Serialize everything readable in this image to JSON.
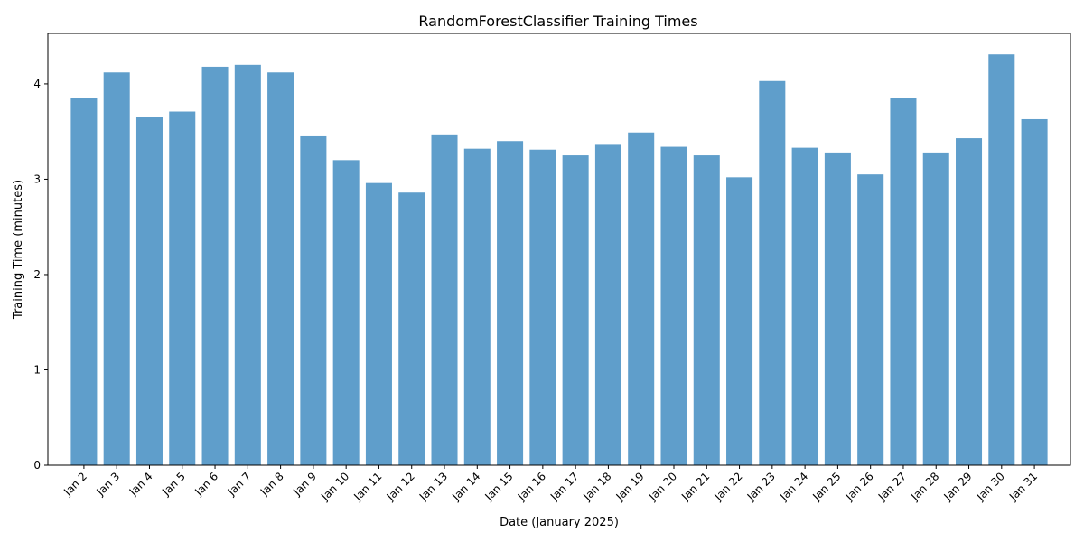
{
  "chart_data": {
    "type": "bar",
    "title": "RandomForestClassifier Training Times",
    "xlabel": "Date (January 2025)",
    "ylabel": "Training Time (minutes)",
    "categories": [
      "Jan 2",
      "Jan 3",
      "Jan 4",
      "Jan 5",
      "Jan 6",
      "Jan 7",
      "Jan 8",
      "Jan 9",
      "Jan 10",
      "Jan 11",
      "Jan 12",
      "Jan 13",
      "Jan 14",
      "Jan 15",
      "Jan 16",
      "Jan 17",
      "Jan 18",
      "Jan 19",
      "Jan 20",
      "Jan 21",
      "Jan 22",
      "Jan 23",
      "Jan 24",
      "Jan 25",
      "Jan 26",
      "Jan 27",
      "Jan 28",
      "Jan 29",
      "Jan 30",
      "Jan 31"
    ],
    "values": [
      3.85,
      4.12,
      3.65,
      3.71,
      4.18,
      4.2,
      4.12,
      3.45,
      3.2,
      2.96,
      2.86,
      3.47,
      3.32,
      3.4,
      3.31,
      3.25,
      3.37,
      3.49,
      3.34,
      3.25,
      3.02,
      4.03,
      3.33,
      3.28,
      3.05,
      3.85,
      3.28,
      3.43,
      4.31,
      3.63
    ],
    "ylim": [
      0,
      4.53
    ],
    "yticks": [
      0,
      1,
      2,
      3,
      4
    ],
    "grid": false,
    "bar_color": "#5f9ecb",
    "x_tick_rotation": 45
  }
}
